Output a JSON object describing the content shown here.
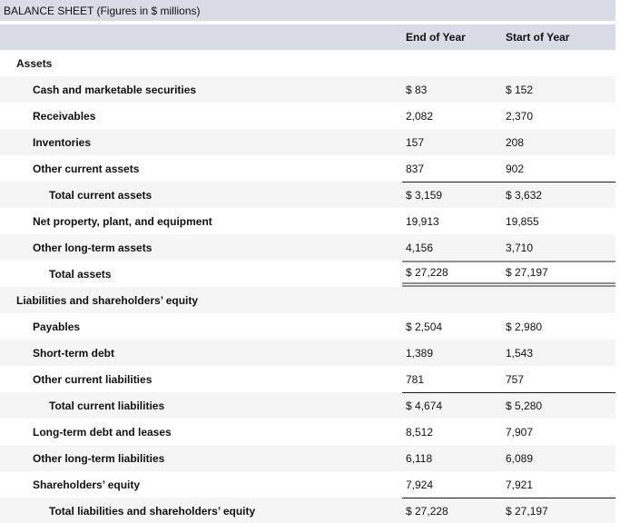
{
  "title": "BALANCE SHEET (Figures in $ millions)",
  "columns": [
    "End of Year",
    "Start of Year"
  ],
  "colors": {
    "band": "#d9dce6",
    "stripe": "#f5f5f6",
    "rule-black": "#1a1a1a",
    "rule-gray": "#8f8f8f",
    "ink": "#111111"
  },
  "rows": [
    {
      "label": "Assets",
      "kind": "section",
      "end": "",
      "start": ""
    },
    {
      "label": "Cash and marketable securities",
      "kind": "item",
      "end": "$ 83",
      "start": "$ 152"
    },
    {
      "label": "Receivables",
      "kind": "item",
      "end": "2,082",
      "start": "2,370"
    },
    {
      "label": "Inventories",
      "kind": "item",
      "end": "157",
      "start": "208"
    },
    {
      "label": "Other current assets",
      "kind": "item",
      "end": "837",
      "start": "902"
    },
    {
      "label": "Total current assets",
      "kind": "subtotal",
      "end": "$ 3,159",
      "start": "$ 3,632"
    },
    {
      "label": "Net property, plant, and equipment",
      "kind": "item",
      "end": "19,913",
      "start": "19,855"
    },
    {
      "label": "Other long-term assets",
      "kind": "item",
      "end": "4,156",
      "start": "3,710"
    },
    {
      "label": "Total assets",
      "kind": "total",
      "end": "$ 27,228",
      "start": "$ 27,197"
    },
    {
      "label": "Liabilities and shareholders’ equity",
      "kind": "section",
      "end": "",
      "start": ""
    },
    {
      "label": "Payables",
      "kind": "item",
      "end": "$ 2,504",
      "start": "$ 2,980"
    },
    {
      "label": "Short-term debt",
      "kind": "item",
      "end": "1,389",
      "start": "1,543"
    },
    {
      "label": "Other current liabilities",
      "kind": "item",
      "end": "781",
      "start": "757"
    },
    {
      "label": "Total current liabilities",
      "kind": "subtotal",
      "end": "$ 4,674",
      "start": "$ 5,280"
    },
    {
      "label": "Long-term debt and leases",
      "kind": "item",
      "end": "8,512",
      "start": "7,907"
    },
    {
      "label": "Other long-term liabilities",
      "kind": "item",
      "end": "6,118",
      "start": "6,089"
    },
    {
      "label": "Shareholders’ equity",
      "kind": "item",
      "end": "7,924",
      "start": "7,921"
    },
    {
      "label": "Total liabilities and shareholders’ equity",
      "kind": "subtotal",
      "end": "$ 27,228",
      "start": "$ 27,197"
    }
  ]
}
